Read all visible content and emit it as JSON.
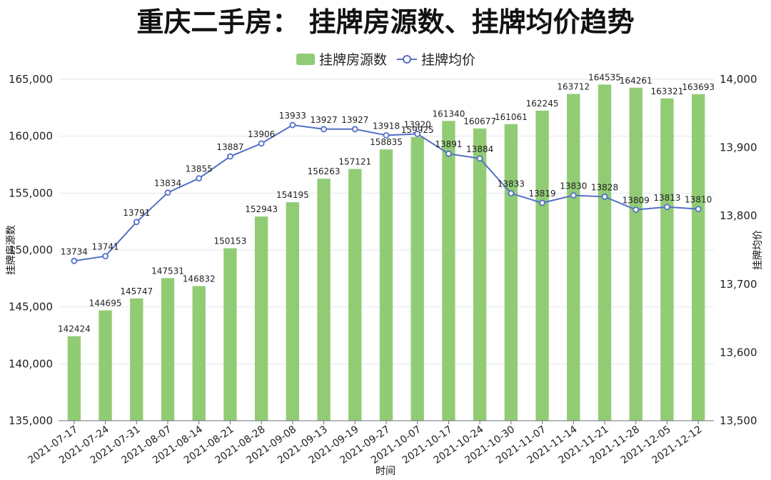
{
  "chart_data": {
    "type": "bar+line",
    "title": "重庆二手房： 挂牌房源数、挂牌均价趋势",
    "xlabel": "时间",
    "ylabel_left": "挂牌房源数",
    "ylabel_right": "挂牌均价",
    "legend": [
      "挂牌房源数",
      "挂牌均价"
    ],
    "legend_position": "top-center",
    "categories": [
      "2021-07-17",
      "2021-07-24",
      "2021-07-31",
      "2021-08-07",
      "2021-08-14",
      "2021-08-21",
      "2021-08-28",
      "2021-09-08",
      "2021-09-13",
      "2021-09-19",
      "2021-09-27",
      "2021-10-07",
      "2021-10-17",
      "2021-10-24",
      "2021-10-30",
      "2021-11-07",
      "2021-11-14",
      "2021-11-21",
      "2021-11-28",
      "2021-12-05",
      "2021-12-12"
    ],
    "series": [
      {
        "name": "挂牌房源数",
        "type": "bar",
        "axis": "left",
        "color": "#91cc75",
        "values": [
          142424,
          144695,
          145747,
          147531,
          146832,
          150153,
          152943,
          154195,
          156263,
          157121,
          158835,
          159925,
          161340,
          160677,
          161061,
          162245,
          163712,
          164535,
          164261,
          163321,
          163693
        ]
      },
      {
        "name": "挂牌均价",
        "type": "line",
        "axis": "right",
        "color": "#5470c6",
        "values": [
          13734,
          13741,
          13791,
          13834,
          13855,
          13887,
          13906,
          13933,
          13927,
          13927,
          13918,
          13920,
          13891,
          13884,
          13833,
          13819,
          13830,
          13828,
          13809,
          13813,
          13810
        ]
      }
    ],
    "ylim_left": [
      135000,
      165000
    ],
    "ylim_right": [
      13500,
      14000
    ],
    "yticks_left": [
      "135,000",
      "140,000",
      "145,000",
      "150,000",
      "155,000",
      "160,000",
      "165,000"
    ],
    "yticks_right": [
      "13,500",
      "13,600",
      "13,700",
      "13,800",
      "13,900",
      "14,000"
    ],
    "grid": true
  }
}
